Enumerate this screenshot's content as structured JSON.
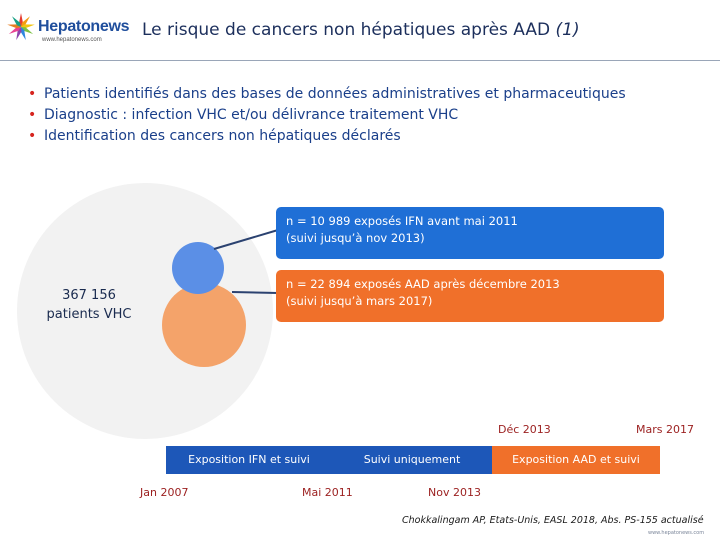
{
  "header": {
    "logo_name": "Hepatonews",
    "logo_url": "www.hepatonews.com",
    "title_main": "Le risque de cancers non hépatiques après AAD",
    "title_ref": "(1)"
  },
  "bullets": [
    "Patients identifiés dans des bases de données administratives et pharmaceutiques",
    "Diagnostic : infection VHC et/ou délivrance traitement VHC",
    "Identification des cancers non hépatiques déclarés"
  ],
  "diagram": {
    "total_line1": "367 156",
    "total_line2": "patients VHC",
    "ifn_line1": "n = 10 989 exposés  IFN avant mai 2011",
    "ifn_line2": "(suivi jusqu’à nov 2013)",
    "aad_line1": "n = 22 894 exposés  AAD après décembre 2013",
    "aad_line2": "(suivi jusqu’à mars 2017)"
  },
  "timeline": {
    "seg_ifn": "Exposition IFN et  suivi",
    "seg_suivi": "Suivi uniquement",
    "seg_aad": "Exposition AAD et suivi",
    "date_jan2007": "Jan 2007",
    "date_mai2011": "Mai 2011",
    "date_nov2013": "Nov 2013",
    "date_dec2013": "Déc 2013",
    "date_mars2017": "Mars 2017"
  },
  "citation": "Chokkalingam AP, Etats-Unis, EASL 2018, Abs. PS-155 actualisé",
  "footer_site": "www.hepatonews.com",
  "colors": {
    "title": "#1c2f5c",
    "bullet_text": "#1a3f8a",
    "bullet_marker": "#d6241f",
    "ifn_blue": "#1f6fd6",
    "timeline_blue": "#1d57b8",
    "aad_orange": "#f0702a",
    "date_red": "#9b1f1f"
  }
}
